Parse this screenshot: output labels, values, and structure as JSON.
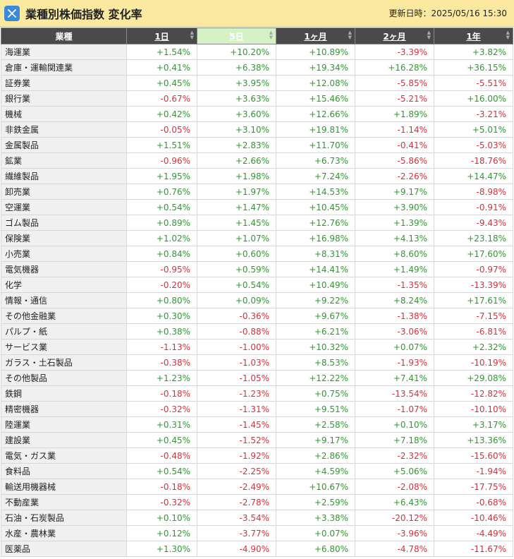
{
  "header": {
    "title": "業種別株価指数 変化率",
    "updated_label": "更新日時：2025/05/16 15:30",
    "logo_icon": "x-logo-icon"
  },
  "columns": [
    "業種",
    "1日",
    "5日",
    "1ヶ月",
    "2ヶ月",
    "1年"
  ],
  "active_sort_column": "5日",
  "colors": {
    "positive": "#2e9a2e",
    "negative": "#d6303a",
    "header_bg": "#4a4a4a",
    "title_bg": "#fbe9a0"
  },
  "rows": [
    {
      "name": "海運業",
      "values": [
        "+1.54%",
        "+10.20%",
        "+10.89%",
        "-3.39%",
        "+3.82%"
      ]
    },
    {
      "name": "倉庫・運輸関連業",
      "values": [
        "+0.41%",
        "+6.38%",
        "+19.34%",
        "+16.28%",
        "+36.15%"
      ]
    },
    {
      "name": "証券業",
      "values": [
        "+0.45%",
        "+3.95%",
        "+12.08%",
        "-5.85%",
        "-5.51%"
      ]
    },
    {
      "name": "銀行業",
      "values": [
        "-0.67%",
        "+3.63%",
        "+15.46%",
        "-5.21%",
        "+16.00%"
      ]
    },
    {
      "name": "機械",
      "values": [
        "+0.42%",
        "+3.60%",
        "+12.66%",
        "+1.89%",
        "-3.21%"
      ]
    },
    {
      "name": "非鉄金属",
      "values": [
        "-0.05%",
        "+3.10%",
        "+19.81%",
        "-1.14%",
        "+5.01%"
      ]
    },
    {
      "name": "金属製品",
      "values": [
        "+1.51%",
        "+2.83%",
        "+11.70%",
        "-0.41%",
        "-5.03%"
      ]
    },
    {
      "name": "鉱業",
      "values": [
        "-0.96%",
        "+2.66%",
        "+6.73%",
        "-5.86%",
        "-18.76%"
      ]
    },
    {
      "name": "繊維製品",
      "values": [
        "+1.95%",
        "+1.98%",
        "+7.24%",
        "-2.26%",
        "+14.47%"
      ]
    },
    {
      "name": "卸売業",
      "values": [
        "+0.76%",
        "+1.97%",
        "+14.53%",
        "+9.17%",
        "-8.98%"
      ]
    },
    {
      "name": "空運業",
      "values": [
        "+0.54%",
        "+1.47%",
        "+10.45%",
        "+3.90%",
        "-0.91%"
      ]
    },
    {
      "name": "ゴム製品",
      "values": [
        "+0.89%",
        "+1.45%",
        "+12.76%",
        "+1.39%",
        "-9.43%"
      ]
    },
    {
      "name": "保険業",
      "values": [
        "+1.02%",
        "+1.07%",
        "+16.98%",
        "+4.13%",
        "+23.18%"
      ]
    },
    {
      "name": "小売業",
      "values": [
        "+0.84%",
        "+0.60%",
        "+8.31%",
        "+8.60%",
        "+17.60%"
      ]
    },
    {
      "name": "電気機器",
      "values": [
        "-0.95%",
        "+0.59%",
        "+14.41%",
        "+1.49%",
        "-0.97%"
      ]
    },
    {
      "name": "化学",
      "values": [
        "-0.20%",
        "+0.54%",
        "+10.49%",
        "-1.35%",
        "-13.39%"
      ]
    },
    {
      "name": "情報・通信",
      "values": [
        "+0.80%",
        "+0.09%",
        "+9.22%",
        "+8.24%",
        "+17.61%"
      ]
    },
    {
      "name": "その他金融業",
      "values": [
        "+0.30%",
        "-0.36%",
        "+9.67%",
        "-1.38%",
        "-7.15%"
      ]
    },
    {
      "name": "パルプ・紙",
      "values": [
        "+0.38%",
        "-0.88%",
        "+6.21%",
        "-3.06%",
        "-6.81%"
      ]
    },
    {
      "name": "サービス業",
      "values": [
        "-1.13%",
        "-1.00%",
        "+10.32%",
        "+0.07%",
        "+2.32%"
      ]
    },
    {
      "name": "ガラス・土石製品",
      "values": [
        "-0.38%",
        "-1.03%",
        "+8.53%",
        "-1.93%",
        "-10.19%"
      ]
    },
    {
      "name": "その他製品",
      "values": [
        "+1.23%",
        "-1.05%",
        "+12.22%",
        "+7.41%",
        "+29.08%"
      ]
    },
    {
      "name": "鉄鋼",
      "values": [
        "-0.18%",
        "-1.23%",
        "+0.75%",
        "-13.54%",
        "-12.82%"
      ]
    },
    {
      "name": "精密機器",
      "values": [
        "-0.32%",
        "-1.31%",
        "+9.51%",
        "-1.07%",
        "-10.10%"
      ]
    },
    {
      "name": "陸運業",
      "values": [
        "+0.31%",
        "-1.45%",
        "+2.58%",
        "+0.10%",
        "+3.17%"
      ]
    },
    {
      "name": "建設業",
      "values": [
        "+0.45%",
        "-1.52%",
        "+9.17%",
        "+7.18%",
        "+13.36%"
      ]
    },
    {
      "name": "電気・ガス業",
      "values": [
        "-0.48%",
        "-1.92%",
        "+2.86%",
        "-2.32%",
        "-15.60%"
      ]
    },
    {
      "name": "食料品",
      "values": [
        "+0.54%",
        "-2.25%",
        "+4.59%",
        "+5.06%",
        "-1.94%"
      ]
    },
    {
      "name": "輸送用機器械",
      "values": [
        "-0.18%",
        "-2.49%",
        "+10.67%",
        "-2.08%",
        "-17.75%"
      ]
    },
    {
      "name": "不動産業",
      "values": [
        "-0.32%",
        "-2.78%",
        "+2.59%",
        "+6.43%",
        "-0.68%"
      ]
    },
    {
      "name": "石油・石炭製品",
      "values": [
        "+0.10%",
        "-3.54%",
        "+3.38%",
        "-20.12%",
        "-10.46%"
      ]
    },
    {
      "name": "水産・農林業",
      "values": [
        "+0.12%",
        "-3.77%",
        "+0.07%",
        "-3.96%",
        "-4.49%"
      ]
    },
    {
      "name": "医薬品",
      "values": [
        "+1.30%",
        "-4.90%",
        "+6.80%",
        "-4.78%",
        "-11.67%"
      ]
    }
  ]
}
